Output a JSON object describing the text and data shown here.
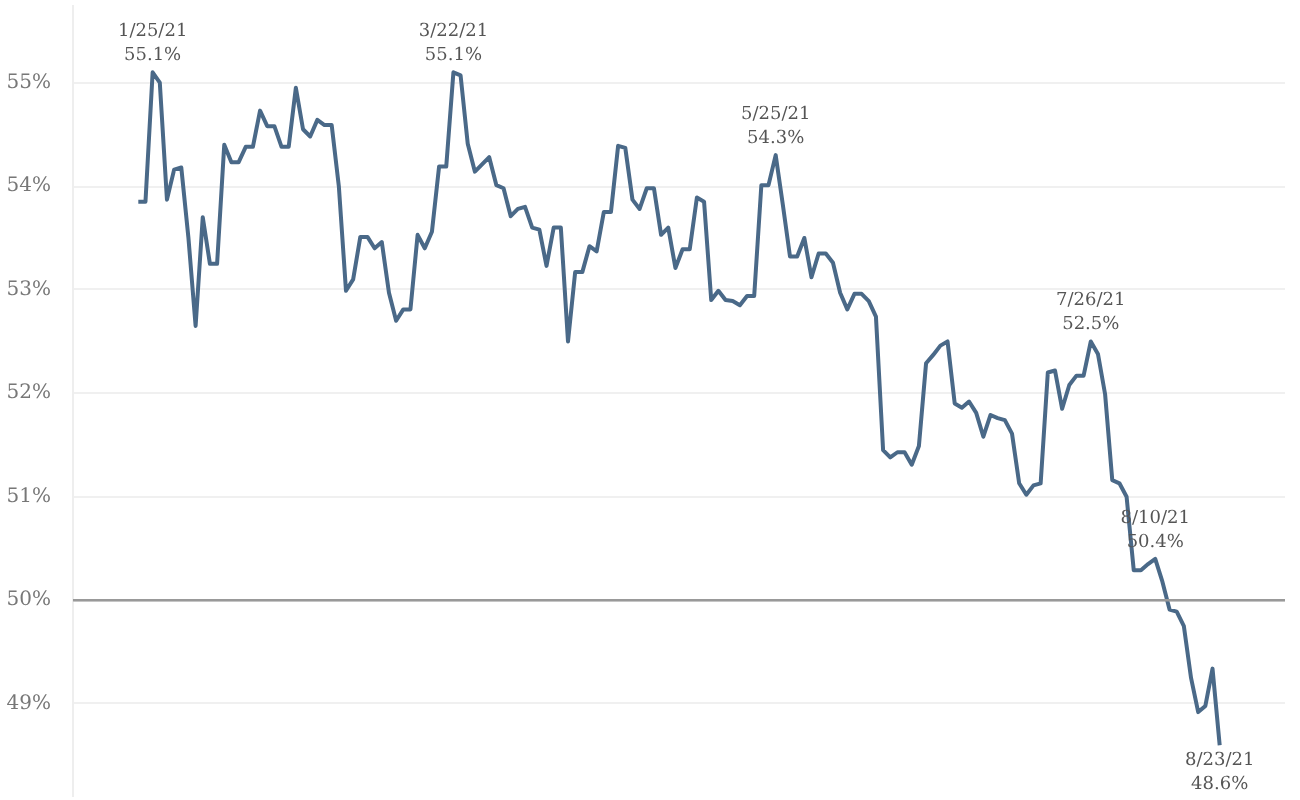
{
  "chart_data": {
    "type": "line",
    "categories": [
      null,
      null,
      null,
      null,
      null,
      null,
      null,
      null,
      null,
      null,
      null,
      null,
      null,
      null,
      null,
      null,
      null,
      null,
      null,
      null,
      null,
      null,
      null,
      null,
      null,
      null,
      null,
      null,
      null,
      null,
      null,
      null,
      null,
      null,
      null,
      null,
      null,
      null,
      null,
      null,
      null,
      null,
      null,
      null,
      null,
      null,
      null,
      null,
      null,
      null,
      null,
      null,
      null,
      null,
      null,
      null,
      null,
      null,
      null,
      null,
      null,
      null,
      null,
      null,
      null,
      null,
      null,
      null,
      null,
      null,
      null,
      null,
      null,
      null,
      null,
      null,
      null,
      null,
      null,
      null,
      null,
      null,
      null,
      null,
      null,
      null,
      null,
      null,
      null,
      null,
      null,
      null,
      null,
      null,
      null,
      null,
      null,
      null,
      null,
      null,
      null,
      null,
      null,
      null,
      null,
      null,
      null,
      null,
      null,
      null,
      null,
      null,
      null,
      null,
      null,
      null,
      null,
      null,
      null,
      null,
      null,
      null,
      null,
      null,
      null,
      null,
      null,
      null,
      null,
      null,
      null,
      null,
      null,
      null,
      null,
      null,
      null,
      null,
      null,
      null,
      null,
      null,
      null,
      null,
      null,
      null,
      null,
      null,
      null,
      null,
      null,
      null
    ],
    "series": [
      {
        "color": "#4a6988",
        "values": [
          53.85,
          53.85,
          55.1,
          55.0,
          53.87,
          54.16,
          54.18,
          53.5,
          52.65,
          53.7,
          53.25,
          53.25,
          54.4,
          54.23,
          54.23,
          54.38,
          54.38,
          54.73,
          54.58,
          54.58,
          54.38,
          54.38,
          54.95,
          54.55,
          54.48,
          54.64,
          54.59,
          54.59,
          54.0,
          52.99,
          53.1,
          53.51,
          53.51,
          53.4,
          53.46,
          52.97,
          52.7,
          52.81,
          52.81,
          53.53,
          53.4,
          53.56,
          54.19,
          54.19,
          55.1,
          55.07,
          54.41,
          54.14,
          54.21,
          54.28,
          54.01,
          53.98,
          53.71,
          53.78,
          53.8,
          53.6,
          53.58,
          53.23,
          53.6,
          53.6,
          52.5,
          53.17,
          53.17,
          53.42,
          53.37,
          53.75,
          53.75,
          54.39,
          54.37,
          53.87,
          53.78,
          53.98,
          53.98,
          53.53,
          53.6,
          53.21,
          53.39,
          53.39,
          53.89,
          53.85,
          52.9,
          52.99,
          52.9,
          52.89,
          52.85,
          52.94,
          52.94,
          54.01,
          54.01,
          54.3,
          53.82,
          53.32,
          53.32,
          53.5,
          53.12,
          53.35,
          53.35,
          53.26,
          52.97,
          52.81,
          52.96,
          52.96,
          52.89,
          52.74,
          51.45,
          51.38,
          51.43,
          51.43,
          51.31,
          51.49,
          52.29,
          52.37,
          52.46,
          52.5,
          51.9,
          51.86,
          51.92,
          51.81,
          51.58,
          51.79,
          51.76,
          51.74,
          51.61,
          51.13,
          51.02,
          51.11,
          51.13,
          52.2,
          52.22,
          51.85,
          52.08,
          52.17,
          52.17,
          52.5,
          52.38,
          51.99,
          51.16,
          51.13,
          51.0,
          50.29,
          50.29,
          50.35,
          50.4,
          50.18,
          49.91,
          49.89,
          49.75,
          49.25,
          48.92,
          48.98,
          49.34,
          48.6
        ],
        "value_labels": [
          null,
          null,
          "1/25/21\n55.1%",
          null,
          null,
          null,
          null,
          null,
          null,
          null,
          null,
          null,
          null,
          null,
          null,
          null,
          null,
          null,
          null,
          null,
          null,
          null,
          null,
          null,
          null,
          null,
          null,
          null,
          null,
          null,
          null,
          null,
          null,
          null,
          null,
          null,
          null,
          null,
          null,
          null,
          null,
          null,
          null,
          null,
          "3/22/21\n55.1%",
          null,
          null,
          null,
          null,
          null,
          null,
          null,
          null,
          null,
          null,
          null,
          null,
          null,
          null,
          null,
          null,
          null,
          null,
          null,
          null,
          null,
          null,
          null,
          null,
          null,
          null,
          null,
          null,
          null,
          null,
          null,
          null,
          null,
          null,
          null,
          null,
          null,
          null,
          null,
          null,
          null,
          null,
          null,
          null,
          "5/25/21\n54.3%",
          null,
          null,
          null,
          null,
          null,
          null,
          null,
          null,
          null,
          null,
          null,
          null,
          null,
          null,
          null,
          null,
          null,
          null,
          null,
          null,
          null,
          null,
          null,
          null,
          null,
          null,
          null,
          null,
          null,
          null,
          null,
          null,
          null,
          null,
          null,
          null,
          null,
          null,
          null,
          null,
          null,
          null,
          null,
          "7/26/21\n52.5%",
          null,
          null,
          null,
          null,
          null,
          null,
          null,
          null,
          "8/10/21\n50.4%",
          null,
          null,
          null,
          null,
          null,
          null,
          null,
          null,
          "8/23/21\n48.6%"
        ]
      }
    ],
    "ylim": [
      48.1,
      55.75
    ],
    "yticks": [
      {
        "value": 49,
        "label": "49%"
      },
      {
        "value": 50,
        "label": "50%"
      },
      {
        "value": 51,
        "label": "51%"
      },
      {
        "value": 52,
        "label": "52%"
      },
      {
        "value": 53,
        "label": "53%"
      },
      {
        "value": 54,
        "label": "54%"
      },
      {
        "value": 55,
        "label": "55%"
      }
    ],
    "tick_labels": "y",
    "grid": "y",
    "ref_lines": [
      {
        "axis": "y",
        "value": 50,
        "color": "#999999"
      }
    ]
  }
}
